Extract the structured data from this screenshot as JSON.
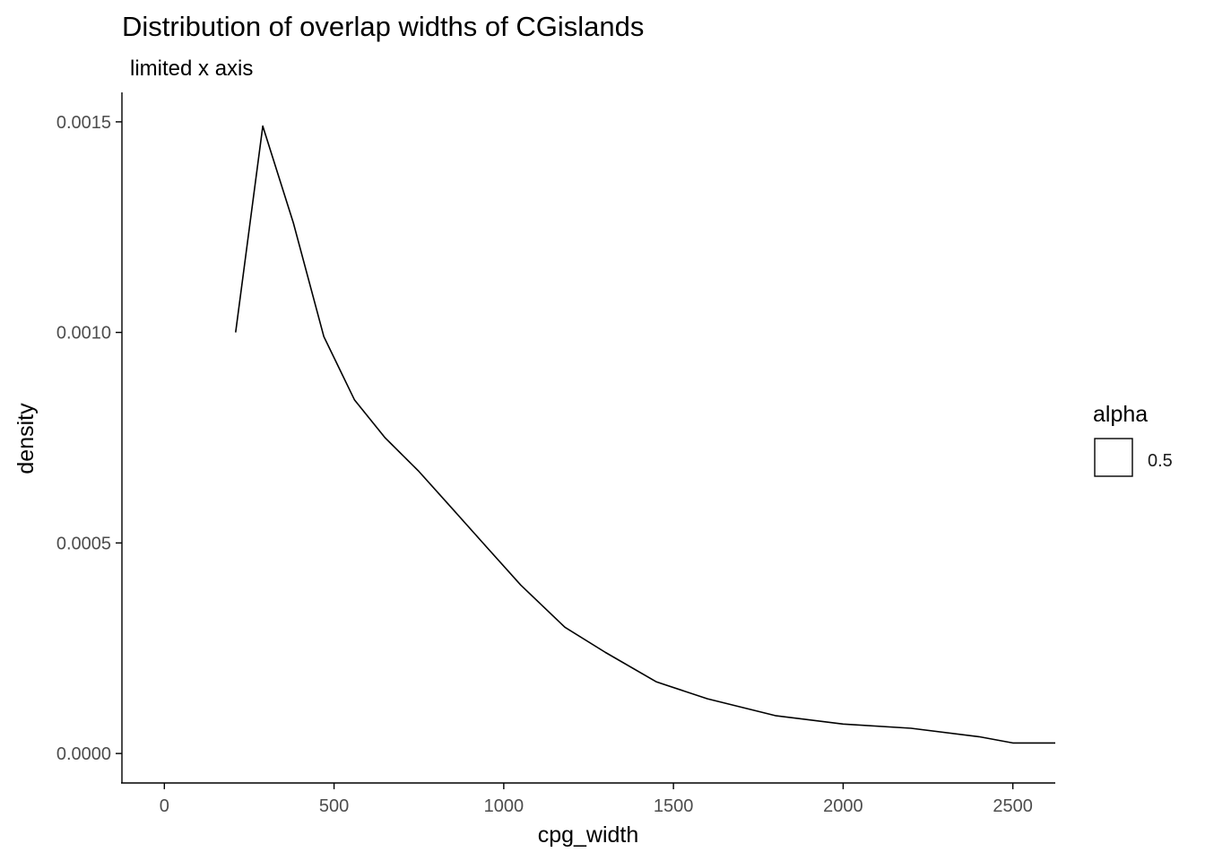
{
  "chart_data": {
    "type": "line",
    "title": "Distribution of overlap widths of CGislands",
    "subtitle": "limited x axis",
    "xlabel": "cpg_width",
    "ylabel": "density",
    "xlim": [
      -125,
      2625
    ],
    "ylim": [
      -7e-05,
      0.00157
    ],
    "x_ticks": [
      0,
      500,
      1000,
      1500,
      2000,
      2500
    ],
    "x_tick_labels": [
      "0",
      "500",
      "1000",
      "1500",
      "2000",
      "2500"
    ],
    "y_ticks": [
      0.0,
      0.0005,
      0.001,
      0.0015
    ],
    "y_tick_labels": [
      "0.0000",
      "0.0005",
      "0.0010",
      "0.0015"
    ],
    "grid": false,
    "legend": {
      "title": "alpha",
      "entries": [
        "0.5"
      ],
      "position": "right"
    },
    "series": [
      {
        "name": "density",
        "color": "#000000",
        "x": [
          210,
          290,
          380,
          470,
          560,
          650,
          750,
          850,
          950,
          1050,
          1180,
          1300,
          1450,
          1600,
          1800,
          2000,
          2200,
          2400,
          2500,
          2625
        ],
        "y": [
          0.001,
          0.00149,
          0.00126,
          0.00099,
          0.00084,
          0.00075,
          0.00067,
          0.00058,
          0.00049,
          0.0004,
          0.0003,
          0.00024,
          0.00017,
          0.00013,
          9e-05,
          7e-05,
          6e-05,
          4e-05,
          2.5e-05,
          2.5e-05
        ]
      }
    ]
  }
}
